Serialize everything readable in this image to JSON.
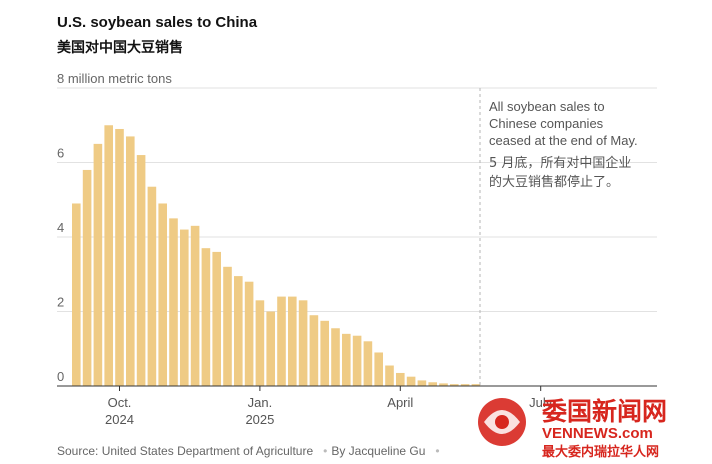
{
  "title": "U.S. soybean sales to China",
  "subtitle": "美国对中国大豆销售",
  "source": {
    "text": "Source: United States Department of Agriculture",
    "byline": "By Jacqueline Gu"
  },
  "annotation": {
    "en": [
      "All soybean sales to",
      "Chinese companies",
      "ceased at the end of May."
    ],
    "zh": [
      "5 月底，所有对中国企业",
      "的大豆销售都停止了。"
    ]
  },
  "watermark": {
    "name": "委国新闻网",
    "domain": "VENNEWS.com",
    "tagline": "最大委内瑞拉华人网"
  },
  "colors": {
    "bar": "#efcb85",
    "grid": "#e2e2e2",
    "axis": "#333333",
    "dashed": "#b5b5b5",
    "watermark_red": "#d7261e"
  },
  "chart_data": {
    "type": "bar",
    "title": "U.S. soybean sales to China",
    "ylabel": "8 million metric tons",
    "ylim": [
      0,
      8
    ],
    "yticks": [
      0,
      2,
      4,
      6
    ],
    "ytick_labels": [
      "0",
      "2",
      "4",
      "6"
    ],
    "x_tick_labels": [
      {
        "label": "Oct.",
        "sub": "2024",
        "bar_index": 4
      },
      {
        "label": "Jan.",
        "sub": "2025",
        "bar_index": 17
      },
      {
        "label": "April",
        "sub": "",
        "bar_index": 30
      },
      {
        "label": "July",
        "sub": "",
        "bar_index": 43
      }
    ],
    "values": [
      4.9,
      5.8,
      6.5,
      7.0,
      6.9,
      6.7,
      6.2,
      5.35,
      4.9,
      4.5,
      4.2,
      4.3,
      3.7,
      3.6,
      3.2,
      2.95,
      2.8,
      2.3,
      2.0,
      2.4,
      2.4,
      2.3,
      1.9,
      1.75,
      1.55,
      1.4,
      1.35,
      1.2,
      0.9,
      0.55,
      0.35,
      0.25,
      0.15,
      0.1,
      0.07,
      0.05,
      0.05,
      0.05
    ]
  }
}
